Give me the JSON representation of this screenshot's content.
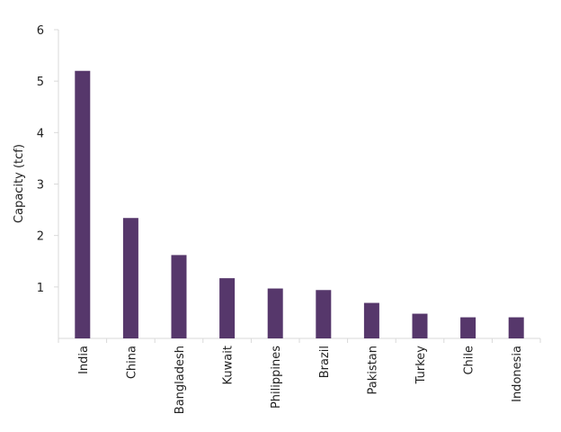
{
  "chart_data": {
    "type": "bar",
    "categories": [
      "India",
      "China",
      "Bangladesh",
      "Kuwait",
      "Philippines",
      "Brazil",
      "Pakistan",
      "Turkey",
      "Chile",
      "Indonesia"
    ],
    "values": [
      5.2,
      2.34,
      1.62,
      1.17,
      0.97,
      0.94,
      0.69,
      0.48,
      0.41,
      0.41
    ],
    "xlabel": "",
    "ylabel": "Capacity (tcf)",
    "ylim": [
      0,
      6
    ],
    "yticks": [
      "1",
      "2",
      "3",
      "4",
      "5",
      "6"
    ],
    "grid": false,
    "legend": "none",
    "bar_color": "#56376b",
    "axis_color": "#d9d9d9"
  }
}
